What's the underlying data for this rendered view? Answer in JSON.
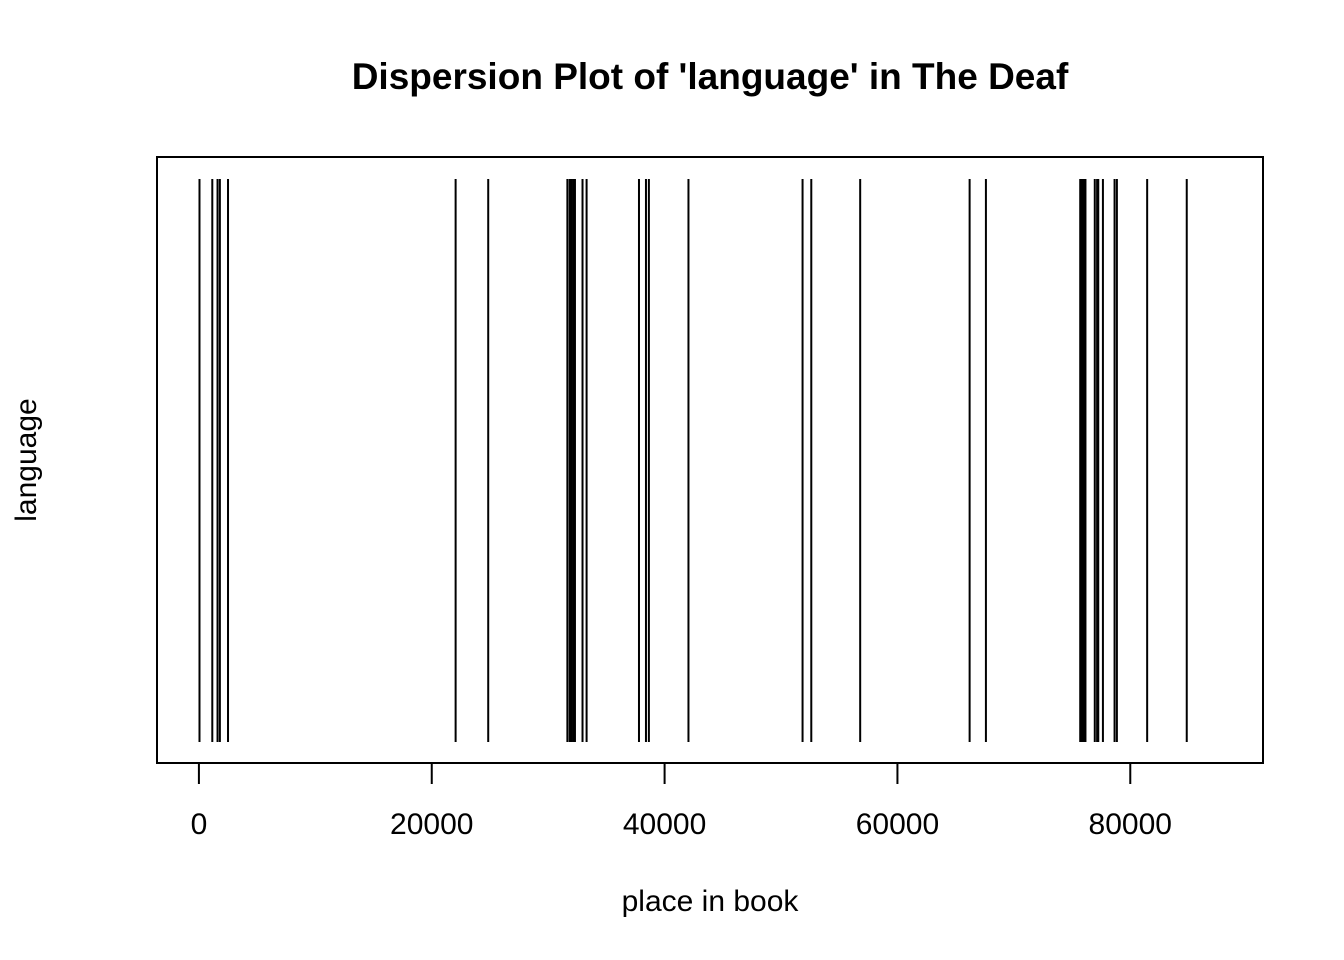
{
  "chart_data": {
    "type": "dispersion",
    "title": "Dispersion Plot of 'language' in The Deaf",
    "xlabel": "place in book",
    "ylabel": "language",
    "xlim": [
      -3600,
      91400
    ],
    "x_ticks": [
      0,
      20000,
      40000,
      60000,
      80000
    ],
    "x_tick_labels": [
      "0",
      "20000",
      "40000",
      "60000",
      "80000"
    ],
    "grid": false,
    "occurrences": [
      50,
      1150,
      1600,
      1800,
      2500,
      22050,
      24850,
      31650,
      31850,
      32000,
      32150,
      32300,
      32950,
      33300,
      37800,
      38400,
      38650,
      42050,
      51850,
      52600,
      56800,
      66200,
      67600,
      75700,
      75850,
      75950,
      76050,
      76150,
      76950,
      77150,
      77250,
      77650,
      78650,
      78850,
      81450,
      84850
    ],
    "mark_color": "#000000"
  }
}
